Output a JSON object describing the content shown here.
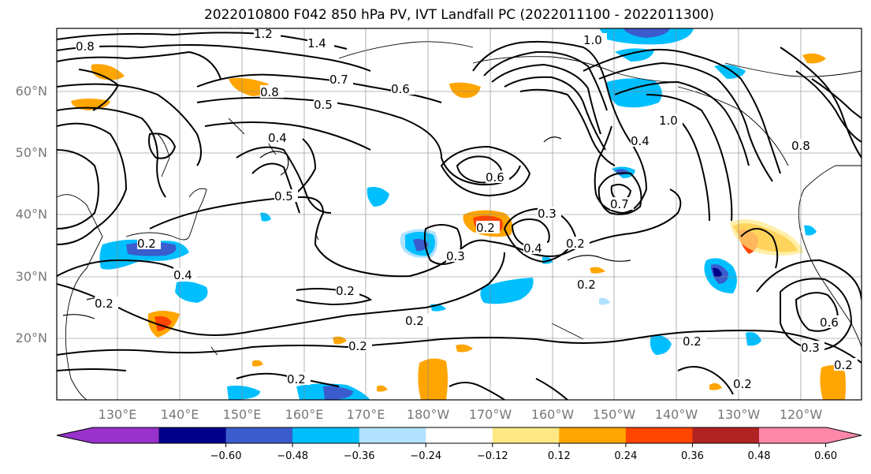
{
  "title": "2022010800 F042 850 hPa PV, IVT Landfall PC (2022011100 - 2022011300)",
  "lat_labels": [
    "60°N",
    "50°N",
    "40°N",
    "30°N",
    "20°N"
  ],
  "lon_labels": [
    "130°E",
    "140°E",
    "150°E",
    "160°E",
    "170°E",
    "180°W",
    "170°W",
    "160°W",
    "150°W",
    "140°W",
    "130°W",
    "120°W"
  ],
  "colorbar": {
    "colors": [
      "#9932cc",
      "#00008b",
      "#3a5ccc",
      "#00bfff",
      "#b0e2ff",
      "#ffffff",
      "#ffe883",
      "#ffa500",
      "#ff4500",
      "#b22222",
      "#ff88aa"
    ],
    "tick_labels": [
      "−0.60",
      "−0.48",
      "−0.36",
      "−0.24",
      "−0.12",
      "0.12",
      "0.24",
      "0.36",
      "0.48",
      "0.60"
    ]
  },
  "contour_labels": [
    "1.2",
    "1.4",
    "0.7",
    "0.8",
    "0.5",
    "0.6",
    "1.0",
    "1.0",
    "0.4",
    "0.5",
    "0.6",
    "0.3",
    "0.2",
    "0.3",
    "0.4",
    "0.2",
    "0.7",
    "0.4",
    "0.8",
    "0.2",
    "0.4",
    "0.2",
    "0.2",
    "0.2",
    "0.2",
    "0.2",
    "0.2",
    "0.2",
    "0.6",
    "0.3",
    "0.2",
    "0.2",
    "0.8"
  ]
}
